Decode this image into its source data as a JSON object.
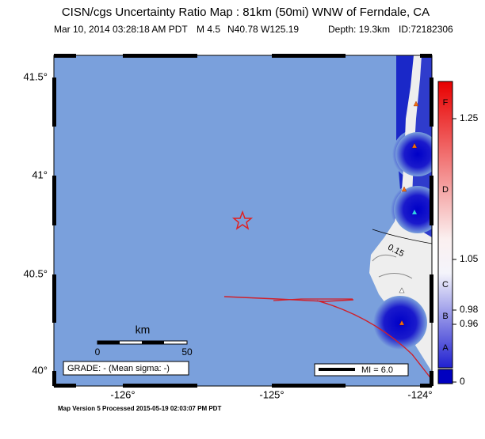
{
  "title": "CISN/cgs Uncertainty Ratio Map : 81km (50mi) WNW of Ferndale, CA",
  "subtitle": [
    "Mar 10, 2014 03:28:18 AM PDT",
    "M 4.5",
    "N40.78 W125.19",
    "Depth: 19.3km",
    "ID:72182306"
  ],
  "map": {
    "lat_labels": [
      "41.5°",
      "41°",
      "40.5°",
      "40°"
    ],
    "lon_labels": [
      "-126°",
      "-125°",
      "-124°"
    ],
    "contour_label": "0.15",
    "scale": {
      "title": "km",
      "labels": [
        "0",
        "50"
      ]
    },
    "grade": "GRADE: - (Mean sigma: -)",
    "legend": "MI = 6.0"
  },
  "colorbar": {
    "letters": [
      "F",
      "D",
      "C",
      "B",
      "A"
    ],
    "labels": [
      "1.25",
      "1.05",
      "0.98",
      "0.96",
      "0"
    ]
  },
  "footer": "Map Version 5 Processed 2015-05-19 02:03:07 PM PDT"
}
